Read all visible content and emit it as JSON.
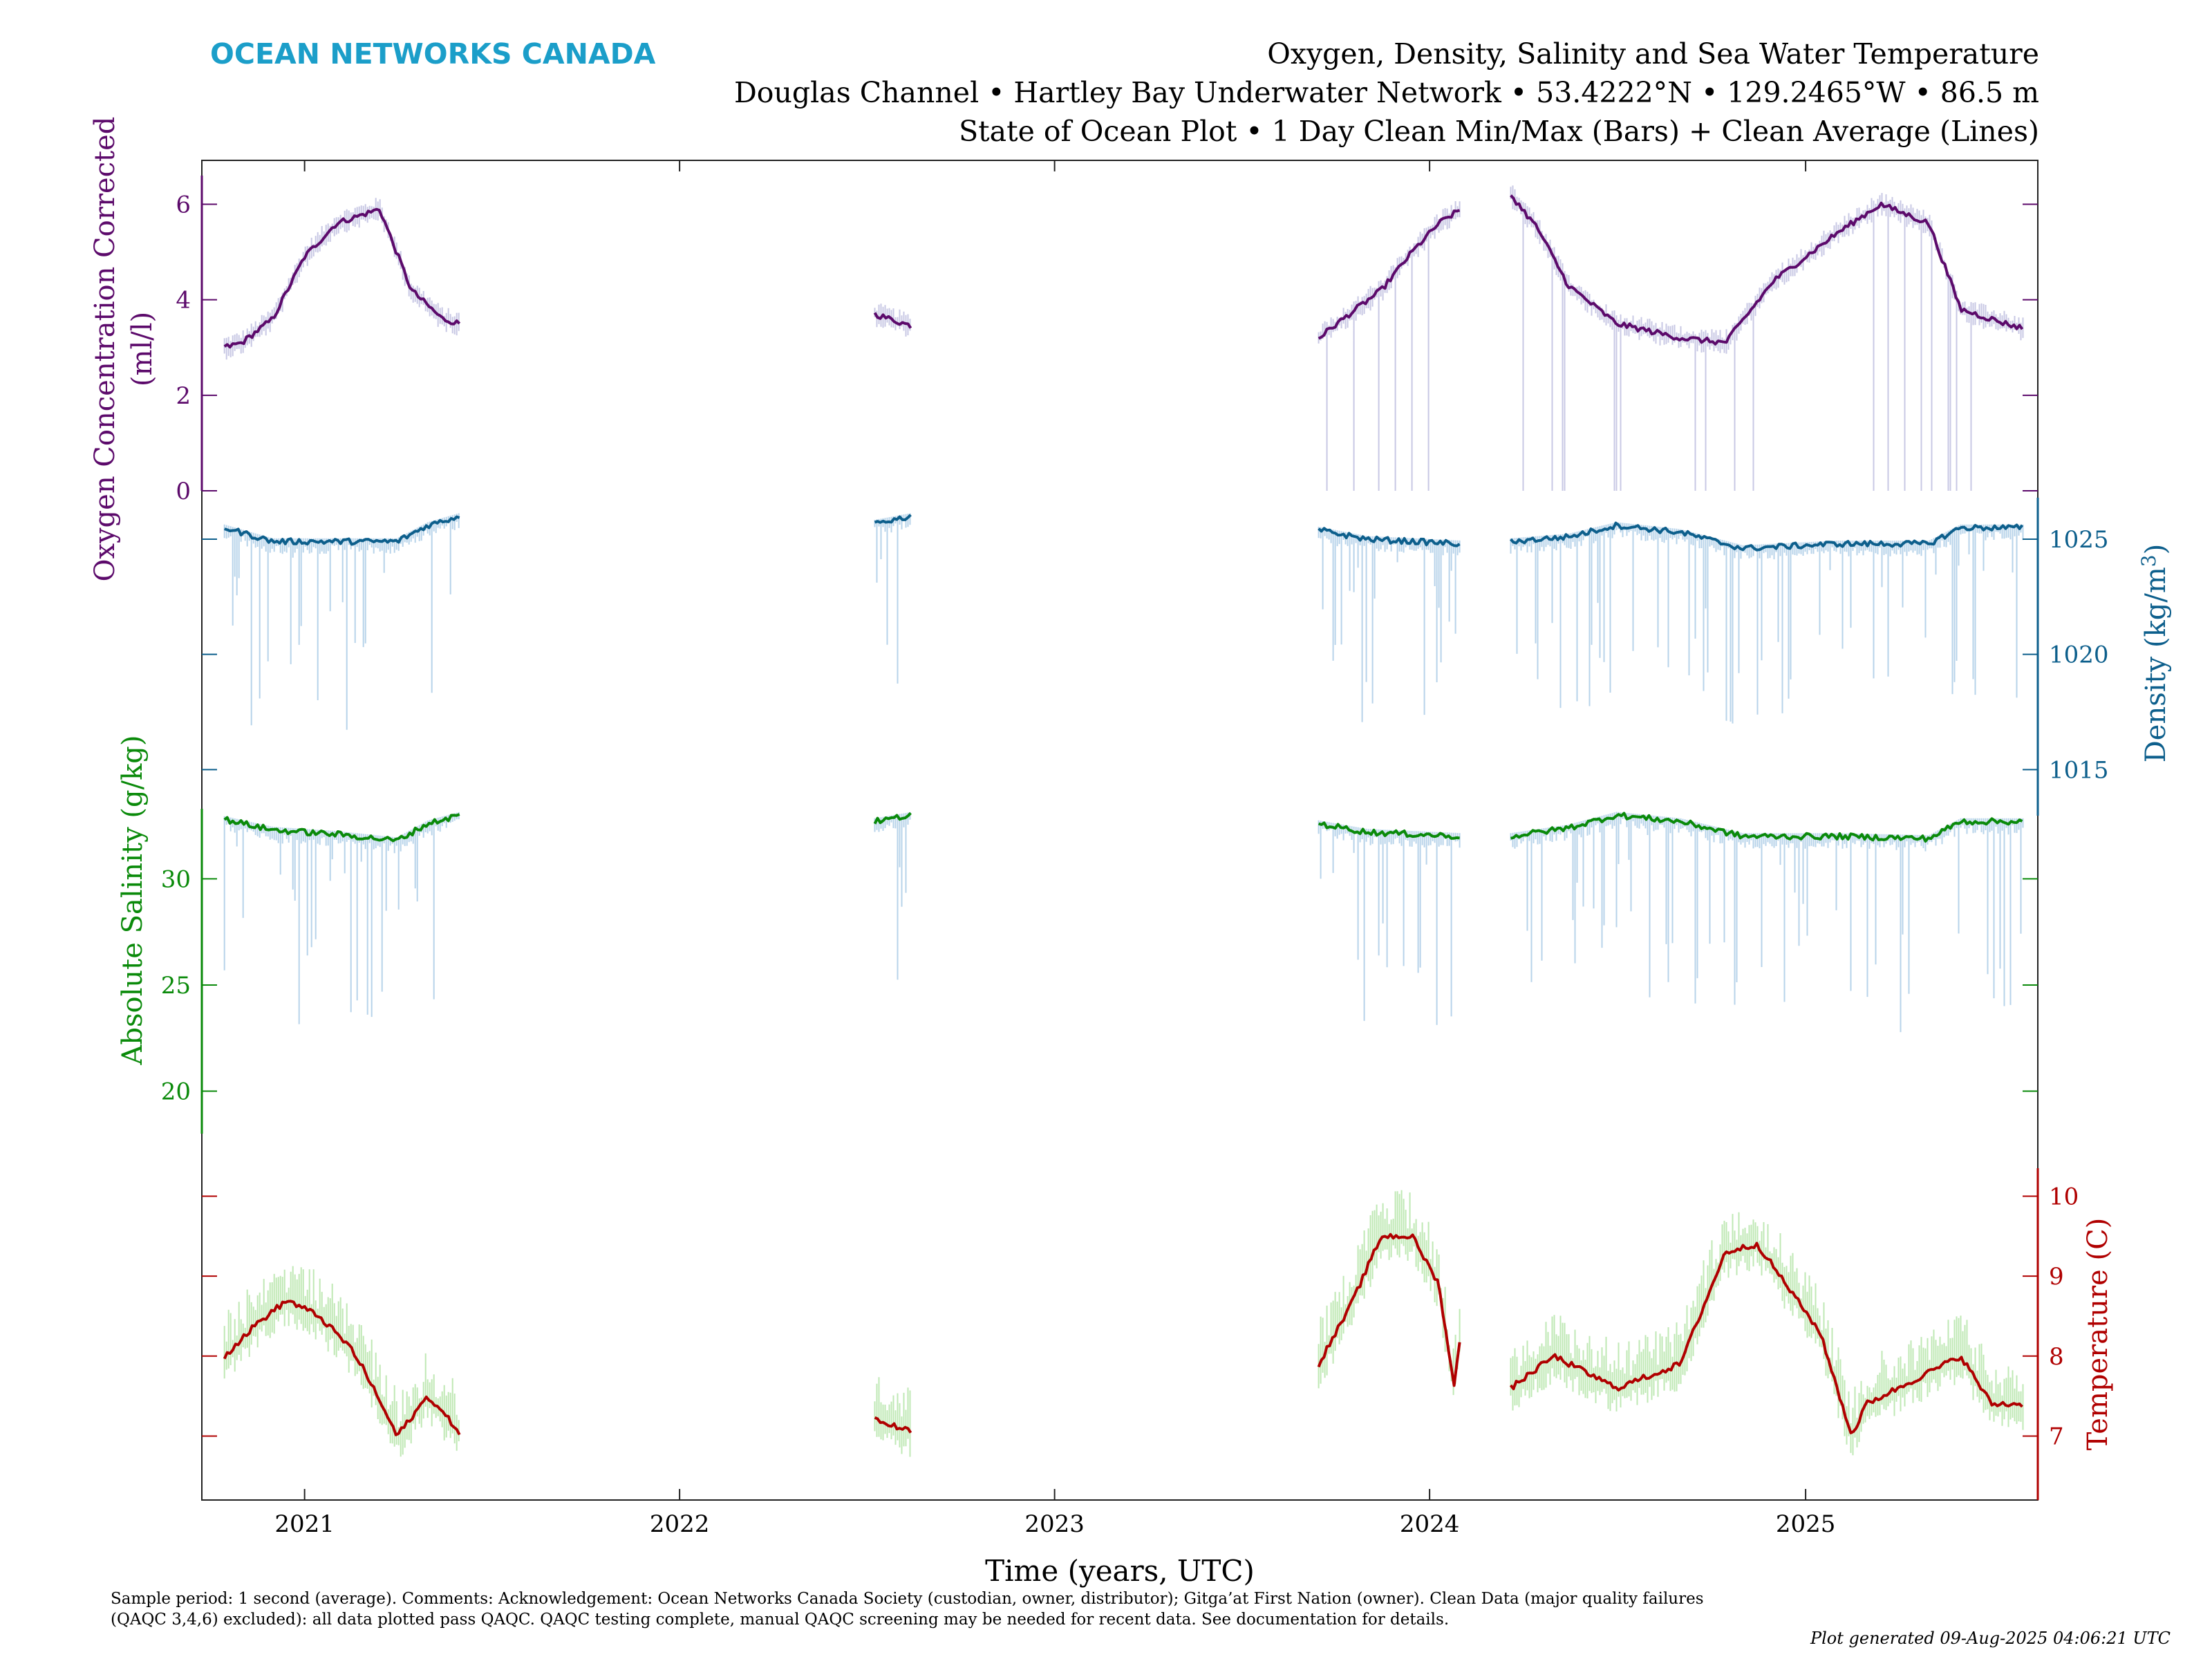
{
  "header": {
    "brand": "OCEAN NETWORKS CANADA",
    "title_line1": "Oxygen, Density, Salinity and Sea Water Temperature",
    "title_line2": "Douglas Channel • Hartley Bay Underwater Network • 53.4222°N • 129.2465°W • 86.5 m",
    "title_line3": "State of Ocean Plot • 1 Day Clean Min/Max (Bars) + Clean Average (Lines)"
  },
  "colors": {
    "brand": "#1b9ec9",
    "oxygen": "#5c0a6b",
    "oxygen_range": "#c8c8e4",
    "density": "#0d5f8c",
    "density_range": "#b7d3ea",
    "salinity": "#0a8a0a",
    "salinity_range": "#b7d3ea",
    "temperature": "#b00000",
    "temperature_range": "#bfe8b4"
  },
  "chart_data": {
    "type": "line",
    "x_axis": {
      "label": "Time (years, UTC)",
      "ticks": [
        "2021",
        "2022",
        "2023",
        "2024",
        "2025"
      ],
      "range": [
        "2020-09-23",
        "2025-08-15"
      ]
    },
    "panels": [
      {
        "name": "oxygen",
        "ylabel_line1": "Oxygen Concentration Corrected",
        "ylabel_line2": "(ml/l)",
        "ylim": [
          0,
          6.6
        ],
        "ticks": [
          "0",
          "2",
          "4",
          "6"
        ],
        "tick_side": "left",
        "segments": [
          {
            "x": [
              "2020-10-15",
              "2020-11-01",
              "2020-12-01",
              "2021-01-01",
              "2021-02-01",
              "2021-03-15",
              "2021-04-15",
              "2021-05-15",
              "2021-06-01"
            ],
            "y": [
              3.0,
              3.1,
              3.6,
              4.9,
              5.6,
              5.9,
              4.2,
              3.6,
              3.5
            ]
          },
          {
            "x": [
              "2022-07-10",
              "2022-08-15"
            ],
            "y": [
              3.7,
              3.45
            ]
          },
          {
            "x": [
              "2023-09-15",
              "2023-10-15",
              "2023-11-15",
              "2023-12-15",
              "2024-01-10",
              "2024-02-01"
            ],
            "y": [
              3.2,
              3.7,
              4.2,
              5.0,
              5.6,
              5.9
            ]
          },
          {
            "x": [
              "2024-03-20",
              "2024-04-15",
              "2024-05-15",
              "2024-07-01",
              "2024-09-01",
              "2024-10-15",
              "2024-12-01",
              "2025-02-01",
              "2025-03-15",
              "2025-05-01",
              "2025-06-01",
              "2025-07-15",
              "2025-08-01"
            ],
            "y": [
              6.2,
              5.5,
              4.3,
              3.5,
              3.2,
              3.1,
              4.4,
              5.4,
              6.0,
              5.6,
              3.8,
              3.5,
              3.4
            ]
          }
        ]
      },
      {
        "name": "density",
        "ylabel": "Density (kg/m³)",
        "ylim": [
          1013.0,
          1026.8
        ],
        "ticks": [
          "1015",
          "1020",
          "1025"
        ],
        "tick_side": "right",
        "segments": [
          {
            "x": [
              "2020-10-15",
              "2020-12-01",
              "2021-02-01",
              "2021-04-01",
              "2021-05-01",
              "2021-06-01"
            ],
            "y": [
              1025.5,
              1024.9,
              1024.9,
              1024.9,
              1025.6,
              1026.0
            ]
          },
          {
            "x": [
              "2022-07-10",
              "2022-08-15"
            ],
            "y": [
              1025.7,
              1026.0
            ]
          },
          {
            "x": [
              "2023-09-15",
              "2023-11-01",
              "2024-02-01"
            ],
            "y": [
              1025.4,
              1025.0,
              1024.8
            ]
          },
          {
            "x": [
              "2024-03-20",
              "2024-05-15",
              "2024-07-01",
              "2024-09-01",
              "2024-11-01",
              "2025-02-01",
              "2025-05-01",
              "2025-06-01",
              "2025-08-01"
            ],
            "y": [
              1024.9,
              1025.1,
              1025.6,
              1025.3,
              1024.6,
              1024.8,
              1024.8,
              1025.5,
              1025.5
            ]
          }
        ]
      },
      {
        "name": "salinity",
        "ylabel": "Absolute Salinity (g/kg)",
        "ylim": [
          18.0,
          33.3
        ],
        "ticks": [
          "20",
          "25",
          "30"
        ],
        "tick_side": "left",
        "segments": [
          {
            "x": [
              "2020-10-15",
              "2020-12-01",
              "2021-02-01",
              "2021-04-01",
              "2021-05-01",
              "2021-06-01"
            ],
            "y": [
              32.8,
              32.3,
              32.1,
              31.8,
              32.6,
              33.0
            ]
          },
          {
            "x": [
              "2022-07-10",
              "2022-08-15"
            ],
            "y": [
              32.7,
              33.0
            ]
          },
          {
            "x": [
              "2023-09-15",
              "2023-11-01",
              "2024-02-01"
            ],
            "y": [
              32.6,
              32.2,
              32.0
            ]
          },
          {
            "x": [
              "2024-03-20",
              "2024-05-15",
              "2024-07-01",
              "2024-09-01",
              "2024-11-01",
              "2025-02-01",
              "2025-05-01",
              "2025-06-01",
              "2025-08-01"
            ],
            "y": [
              32.0,
              32.4,
              33.0,
              32.7,
              32.0,
              32.0,
              31.9,
              32.7,
              32.7
            ]
          }
        ]
      },
      {
        "name": "temperature",
        "ylabel": "Temperature (C)",
        "ylim": [
          6.2,
          10.35
        ],
        "ticks": [
          "7",
          "8",
          "9",
          "10"
        ],
        "tick_side": "right",
        "segments": [
          {
            "x": [
              "2020-10-15",
              "2020-11-15",
              "2020-12-15",
              "2021-01-15",
              "2021-02-15",
              "2021-03-01",
              "2021-04-01",
              "2021-05-01",
              "2021-06-01"
            ],
            "y": [
              8.0,
              8.4,
              8.7,
              8.5,
              8.1,
              7.8,
              7.0,
              7.5,
              7.05
            ]
          },
          {
            "x": [
              "2022-07-10",
              "2022-08-15"
            ],
            "y": [
              7.2,
              7.05
            ]
          },
          {
            "x": [
              "2023-09-15",
              "2023-10-15",
              "2023-11-15",
              "2023-12-15",
              "2024-01-10",
              "2024-01-25",
              "2024-02-01"
            ],
            "y": [
              7.9,
              8.6,
              9.5,
              9.5,
              8.9,
              7.6,
              8.4
            ]
          },
          {
            "x": [
              "2024-03-20",
              "2024-05-01",
              "2024-07-01",
              "2024-09-01",
              "2024-10-15",
              "2024-11-15",
              "2025-01-15",
              "2025-02-15",
              "2025-03-01",
              "2025-04-01",
              "2025-06-01",
              "2025-07-01",
              "2025-08-01"
            ],
            "y": [
              7.6,
              8.0,
              7.6,
              7.9,
              9.3,
              9.4,
              8.3,
              7.0,
              7.4,
              7.6,
              8.0,
              7.4,
              7.4
            ]
          }
        ]
      }
    ]
  },
  "footer": {
    "comment": "Sample period: 1 second (average). Comments: Acknowledgement: Ocean Networks Canada Society (custodian, owner, distributor); Gitga’at First Nation (owner). Clean Data (major quality failures (QAQC 3,4,6) excluded): all data plotted pass QAQC. QAQC testing complete, manual QAQC screening may be needed for recent data. See documentation for details.",
    "generated": "Plot generated 09-Aug-2025 04:06:21 UTC"
  }
}
